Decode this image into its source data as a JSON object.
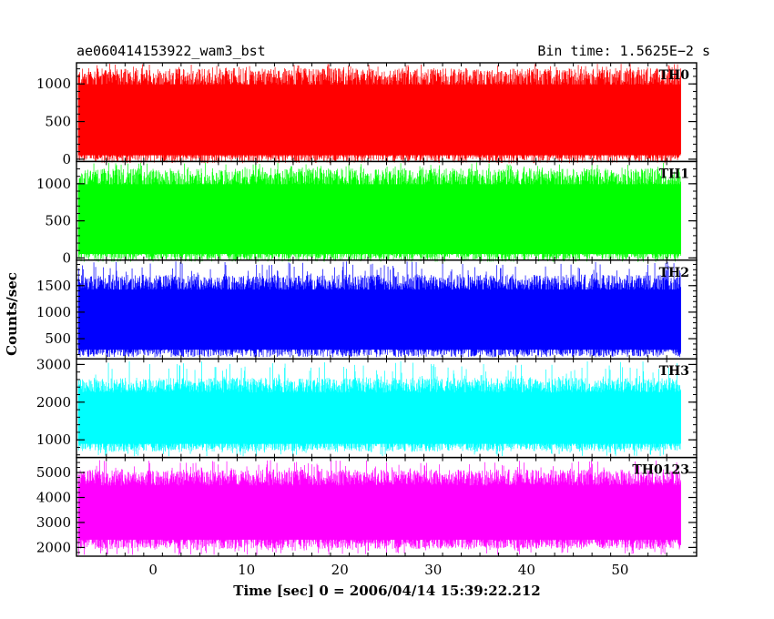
{
  "header": {
    "left_title": "ae060414153922_wam3_bst",
    "right_title": "Bin time: 1.5625E−2 s"
  },
  "chart_data": {
    "type": "line",
    "xlabel": "Time [sec] 0 = 2006/04/14 15:39:22.212",
    "ylabel": "Counts/sec",
    "xlim": [
      -8.2,
      58.2
    ],
    "x_ticks": [
      0,
      10,
      20,
      30,
      40,
      50
    ],
    "x_tick_labels": [
      "0",
      "10",
      "20",
      "30",
      "40",
      "50"
    ],
    "x_data_range": [
      -8,
      56.5
    ],
    "panels": [
      {
        "label": "TH0",
        "color": "#ff0000",
        "ylim": [
          -30,
          1280
        ],
        "y_ticks": [
          0,
          500,
          1000
        ],
        "y_tick_labels": [
          "0",
          "500",
          "1000"
        ],
        "low": 50,
        "high": 1080,
        "spike_max": 1270,
        "dip_min": 0
      },
      {
        "label": "TH1",
        "color": "#00ff00",
        "ylim": [
          -30,
          1300
        ],
        "y_ticks": [
          0,
          500,
          1000
        ],
        "y_tick_labels": [
          "0",
          "500",
          "1000"
        ],
        "low": 50,
        "high": 1080,
        "spike_max": 1290,
        "dip_min": 0
      },
      {
        "label": "TH2",
        "color": "#0000ff",
        "ylim": [
          120,
          1980
        ],
        "y_ticks": [
          500,
          1000,
          1500
        ],
        "y_tick_labels": [
          "500",
          "1000",
          "1500"
        ],
        "low": 280,
        "high": 1550,
        "spike_max": 1960,
        "dip_min": 150
      },
      {
        "label": "TH3",
        "color": "#00ffff",
        "ylim": [
          530,
          3150
        ],
        "y_ticks": [
          1000,
          2000,
          3000
        ],
        "y_tick_labels": [
          "1000",
          "2000",
          "3000"
        ],
        "low": 850,
        "high": 2450,
        "spike_max": 3100,
        "dip_min": 560
      },
      {
        "label": "TH0123",
        "color": "#ff00ff",
        "ylim": [
          1650,
          5600
        ],
        "y_ticks": [
          2000,
          3000,
          4000,
          5000
        ],
        "y_tick_labels": [
          "2000",
          "3000",
          "4000",
          "5000"
        ],
        "low": 2200,
        "high": 4800,
        "spike_max": 5500,
        "dip_min": 1700
      }
    ]
  }
}
